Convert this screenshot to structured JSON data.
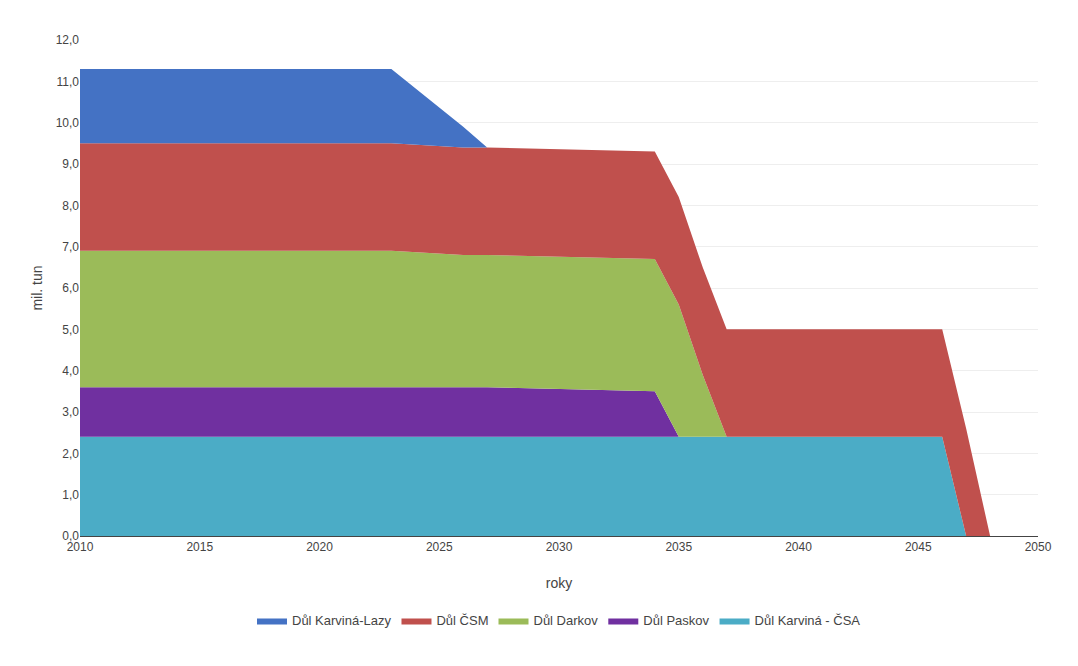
{
  "chart_data": {
    "type": "area",
    "stacked": true,
    "xlabel": "roky",
    "ylabel": "mil. tun",
    "x": [
      2010,
      2023,
      2026,
      2027,
      2034,
      2035,
      2036,
      2037,
      2038,
      2045,
      2046,
      2047,
      2048,
      2050
    ],
    "series": [
      {
        "name": "Důl Karviná - ČSA",
        "color": "#4BACC6",
        "values": [
          2.4,
          2.4,
          2.4,
          2.4,
          2.4,
          2.4,
          2.4,
          2.4,
          2.4,
          2.4,
          2.4,
          0.0,
          0.0,
          0.0
        ]
      },
      {
        "name": "Důl Paskov",
        "color": "#7030A0",
        "values": [
          1.2,
          1.2,
          1.2,
          1.2,
          1.1,
          0.0,
          0.0,
          0.0,
          0.0,
          0.0,
          0.0,
          0.0,
          0.0,
          0.0
        ]
      },
      {
        "name": "Důl Darkov",
        "color": "#9BBB59",
        "values": [
          3.3,
          3.3,
          3.2,
          3.2,
          3.2,
          3.2,
          1.5,
          0.0,
          0.0,
          0.0,
          0.0,
          0.0,
          0.0,
          0.0
        ]
      },
      {
        "name": "Důl ČSM",
        "color": "#C0504D",
        "values": [
          2.6,
          2.6,
          2.6,
          2.6,
          2.6,
          2.6,
          2.6,
          2.6,
          2.6,
          2.6,
          2.6,
          2.6,
          0.0,
          0.0
        ]
      },
      {
        "name": "Důl Karviná-Lazy",
        "color": "#4472C4",
        "values": [
          1.8,
          1.8,
          0.5,
          0.0,
          0.0,
          0.0,
          0.0,
          0.0,
          0.0,
          0.0,
          0.0,
          0.0,
          0.0,
          0.0
        ]
      }
    ],
    "xlim": [
      2010,
      2050
    ],
    "xticks": [
      2010,
      2015,
      2020,
      2025,
      2030,
      2035,
      2040,
      2045,
      2050
    ],
    "ylim": [
      0,
      12
    ],
    "yticks": [
      {
        "value": 0.0,
        "label": "0,0"
      },
      {
        "value": 1.0,
        "label": "1,0"
      },
      {
        "value": 2.0,
        "label": "2,0"
      },
      {
        "value": 3.0,
        "label": "3,0"
      },
      {
        "value": 4.0,
        "label": "4,0"
      },
      {
        "value": 5.0,
        "label": "5,0"
      },
      {
        "value": 6.0,
        "label": "6,0"
      },
      {
        "value": 7.0,
        "label": "7,0"
      },
      {
        "value": 8.0,
        "label": "8,0"
      },
      {
        "value": 9.0,
        "label": "9,0"
      },
      {
        "value": 10.0,
        "label": "10,0"
      },
      {
        "value": 11.0,
        "label": "11,0"
      },
      {
        "value": 12.0,
        "label": "12,0"
      }
    ],
    "grid": true,
    "legend": "bottom"
  }
}
